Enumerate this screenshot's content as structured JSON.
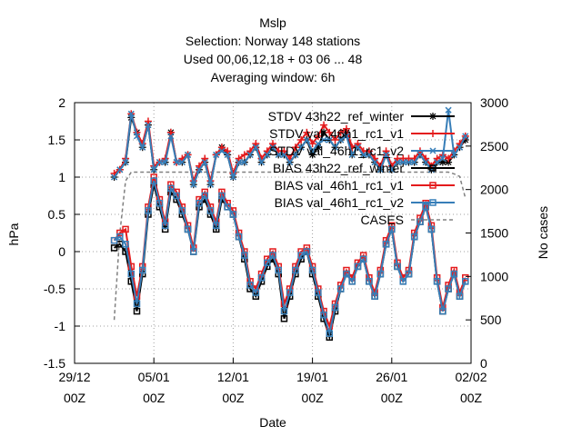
{
  "chart_data": {
    "type": "line",
    "title_lines": [
      "Mslp",
      "Selection: Norway    148 stations",
      "Used  00,06,12,18  + 03 06 ... 48",
      "Averaging window:  6h"
    ],
    "xlabel": "Date",
    "ylabel": "hPa",
    "y2label": "No cases",
    "x_start": "2014-12-29 00Z",
    "x_end": "2015-02-02 00Z",
    "xlim_days": [
      0,
      35
    ],
    "x_ticks": [
      {
        "day": 0,
        "line1": "29/12",
        "line2": "00Z"
      },
      {
        "day": 7,
        "line1": "05/01",
        "line2": "00Z"
      },
      {
        "day": 14,
        "line1": "12/01",
        "line2": "00Z"
      },
      {
        "day": 21,
        "line1": "19/01",
        "line2": "00Z"
      },
      {
        "day": 28,
        "line1": "26/01",
        "line2": "00Z"
      },
      {
        "day": 35,
        "line1": "02/02",
        "line2": "00Z"
      }
    ],
    "ylim": [
      -1.5,
      2
    ],
    "y_ticks": [
      "-1.5",
      "-1",
      "-0.5",
      "0",
      "0.5",
      "1",
      "1.5",
      "2"
    ],
    "y2lim": [
      0,
      3000
    ],
    "y2_ticks": [
      "0",
      "500",
      "1000",
      "1500",
      "2000",
      "2500",
      "3000"
    ],
    "grid": true,
    "legend_position": "top-right",
    "series": [
      {
        "name": "STDV 43h22_ref_winter",
        "color": "#000000",
        "marker": "asterisk",
        "axis": "y",
        "x_days": [
          3.5,
          4,
          4.5,
          5,
          5.5,
          6,
          6.5,
          7,
          7.5,
          8,
          8.5,
          9,
          9.5,
          10,
          10.5,
          11,
          11.5,
          12,
          12.5,
          13,
          13.5,
          14,
          14.5,
          15,
          15.5,
          16,
          16.5,
          17,
          17.5,
          18,
          18.5,
          19,
          19.5,
          20,
          20.5,
          21,
          21.5,
          22,
          22.5,
          23,
          23.5,
          24,
          24.5,
          25,
          25.5,
          26,
          26.5,
          27,
          27.5,
          28,
          28.5,
          29,
          29.5,
          30,
          30.5,
          31,
          31.5,
          32,
          32.5,
          33,
          33.5,
          34,
          34.5
        ],
        "values": [
          1.0,
          1.1,
          1.2,
          1.8,
          1.6,
          1.4,
          1.7,
          1.1,
          1.2,
          1.2,
          1.6,
          1.2,
          1.2,
          1.3,
          0.9,
          1.1,
          1.2,
          0.9,
          1.3,
          1.4,
          1.3,
          1.0,
          1.2,
          1.2,
          1.3,
          1.4,
          1.2,
          1.3,
          1.4,
          1.3,
          1.3,
          1.2,
          1.3,
          1.4,
          1.5,
          1.3,
          1.4,
          1.6,
          1.5,
          1.4,
          1.5,
          1.6,
          1.3,
          1.4,
          1.3,
          1.3,
          1.2,
          1.1,
          1.3,
          1.1,
          1.2,
          1.2,
          1.2,
          1.2,
          1.3,
          1.2,
          1.1,
          1.2,
          1.2,
          1.2,
          1.3,
          1.4,
          1.5
        ]
      },
      {
        "name": "STDV val_46h1_rc1_v1",
        "color": "#e41a1c",
        "marker": "plus",
        "axis": "y",
        "x_days": [
          3.5,
          4,
          4.5,
          5,
          5.5,
          6,
          6.5,
          7,
          7.5,
          8,
          8.5,
          9,
          9.5,
          10,
          10.5,
          11,
          11.5,
          12,
          12.5,
          13,
          13.5,
          14,
          14.5,
          15,
          15.5,
          16,
          16.5,
          17,
          17.5,
          18,
          18.5,
          19,
          19.5,
          20,
          20.5,
          21,
          21.5,
          22,
          22.5,
          23,
          23.5,
          24,
          24.5,
          25,
          25.5,
          26,
          26.5,
          27,
          27.5,
          28,
          28.5,
          29,
          29.5,
          30,
          30.5,
          31,
          31.5,
          32,
          32.5,
          33,
          33.5,
          34,
          34.5
        ],
        "values": [
          1.05,
          1.1,
          1.25,
          1.85,
          1.6,
          1.45,
          1.75,
          1.15,
          1.2,
          1.25,
          1.6,
          1.2,
          1.25,
          1.3,
          0.95,
          1.15,
          1.25,
          0.95,
          1.3,
          1.4,
          1.35,
          1.05,
          1.25,
          1.3,
          1.35,
          1.45,
          1.25,
          1.35,
          1.45,
          1.35,
          1.35,
          1.25,
          1.4,
          1.5,
          1.6,
          1.45,
          1.55,
          1.7,
          1.6,
          1.5,
          1.6,
          1.65,
          1.4,
          1.45,
          1.35,
          1.35,
          1.25,
          1.15,
          1.35,
          1.15,
          1.25,
          1.25,
          1.25,
          1.25,
          1.35,
          1.25,
          1.15,
          1.25,
          1.3,
          1.25,
          1.35,
          1.45,
          1.55
        ]
      },
      {
        "name": "STDV val_46h1_rc1_v2",
        "color": "#377eb8",
        "marker": "x",
        "axis": "y",
        "x_days": [
          3.5,
          4,
          4.5,
          5,
          5.5,
          6,
          6.5,
          7,
          7.5,
          8,
          8.5,
          9,
          9.5,
          10,
          10.5,
          11,
          11.5,
          12,
          12.5,
          13,
          13.5,
          14,
          14.5,
          15,
          15.5,
          16,
          16.5,
          17,
          17.5,
          18,
          18.5,
          19,
          19.5,
          20,
          20.5,
          21,
          21.5,
          22,
          22.5,
          23,
          23.5,
          24,
          24.5,
          25,
          25.5,
          26,
          26.5,
          27,
          27.5,
          28,
          28.5,
          29,
          29.5,
          30,
          30.5,
          31,
          31.5,
          32,
          32.5,
          33,
          33.5,
          34,
          34.5
        ],
        "values": [
          1.0,
          1.1,
          1.2,
          1.85,
          1.55,
          1.4,
          1.7,
          1.1,
          1.2,
          1.2,
          1.55,
          1.2,
          1.2,
          1.3,
          0.9,
          1.1,
          1.2,
          0.9,
          1.3,
          1.35,
          1.3,
          1.0,
          1.2,
          1.2,
          1.3,
          1.4,
          1.2,
          1.3,
          1.4,
          1.3,
          1.3,
          1.2,
          1.3,
          1.4,
          1.5,
          1.35,
          1.45,
          1.5,
          1.5,
          1.4,
          1.5,
          1.55,
          1.3,
          1.4,
          1.3,
          1.3,
          1.2,
          1.1,
          1.3,
          1.1,
          1.2,
          1.2,
          1.2,
          1.2,
          1.3,
          1.2,
          1.1,
          1.2,
          1.25,
          1.9,
          1.3,
          1.4,
          1.55
        ]
      },
      {
        "name": "BIAS 43h22_ref_winter",
        "color": "#000000",
        "marker": "square",
        "axis": "y",
        "x_days": [
          3.5,
          4,
          4.5,
          5,
          5.5,
          6,
          6.5,
          7,
          7.5,
          8,
          8.5,
          9,
          9.5,
          10,
          10.5,
          11,
          11.5,
          12,
          12.5,
          13,
          13.5,
          14,
          14.5,
          15,
          15.5,
          16,
          16.5,
          17,
          17.5,
          18,
          18.5,
          19,
          19.5,
          20,
          20.5,
          21,
          21.5,
          22,
          22.5,
          23,
          23.5,
          24,
          24.5,
          25,
          25.5,
          26,
          26.5,
          27,
          27.5,
          28,
          28.5,
          29,
          29.5,
          30,
          30.5,
          31,
          31.5,
          32,
          32.5,
          33,
          33.5,
          34,
          34.5
        ],
        "values": [
          0.05,
          0.1,
          0.0,
          -0.4,
          -0.8,
          -0.3,
          0.5,
          0.9,
          0.6,
          0.3,
          0.8,
          0.7,
          0.5,
          0.3,
          0.0,
          0.6,
          0.7,
          0.5,
          0.3,
          0.7,
          0.6,
          0.5,
          0.2,
          -0.1,
          -0.5,
          -0.6,
          -0.4,
          -0.2,
          -0.1,
          -0.3,
          -0.9,
          -0.6,
          -0.3,
          -0.1,
          0.0,
          -0.3,
          -0.6,
          -0.9,
          -1.15,
          -0.8,
          -0.5,
          -0.3,
          -0.4,
          -0.2,
          -0.1,
          -0.4,
          -0.6,
          -0.3,
          0.1,
          0.3,
          -0.2,
          -0.4,
          -0.3,
          0.2,
          0.4,
          0.6,
          0.3,
          -0.4,
          -0.8,
          -0.5,
          -0.3,
          -0.6,
          -0.4
        ]
      },
      {
        "name": "BIAS val_46h1_rc1_v1",
        "color": "#e41a1c",
        "marker": "square",
        "axis": "y",
        "x_days": [
          3.5,
          4,
          4.5,
          5,
          5.5,
          6,
          6.5,
          7,
          7.5,
          8,
          8.5,
          9,
          9.5,
          10,
          10.5,
          11,
          11.5,
          12,
          12.5,
          13,
          13.5,
          14,
          14.5,
          15,
          15.5,
          16,
          16.5,
          17,
          17.5,
          18,
          18.5,
          19,
          19.5,
          20,
          20.5,
          21,
          21.5,
          22,
          22.5,
          23,
          23.5,
          24,
          24.5,
          25,
          25.5,
          26,
          26.5,
          27,
          27.5,
          28,
          28.5,
          29,
          29.5,
          30,
          30.5,
          31,
          31.5,
          32,
          32.5,
          33,
          33.5,
          34,
          34.5
        ],
        "values": [
          0.15,
          0.25,
          0.3,
          -0.2,
          -0.6,
          -0.2,
          0.6,
          1.0,
          0.7,
          0.4,
          0.9,
          0.8,
          0.6,
          0.35,
          0.05,
          0.7,
          0.8,
          0.6,
          0.4,
          0.8,
          0.65,
          0.55,
          0.25,
          0.0,
          -0.4,
          -0.5,
          -0.3,
          -0.1,
          0.0,
          -0.2,
          -0.7,
          -0.5,
          -0.2,
          0.0,
          0.05,
          -0.2,
          -0.5,
          -0.8,
          -1.0,
          -0.7,
          -0.45,
          -0.25,
          -0.35,
          -0.15,
          -0.05,
          -0.35,
          -0.55,
          -0.25,
          0.15,
          0.35,
          -0.15,
          -0.35,
          -0.25,
          0.25,
          0.45,
          0.65,
          0.35,
          -0.35,
          -0.75,
          -0.45,
          -0.25,
          -0.55,
          -0.35
        ]
      },
      {
        "name": "BIAS val_46h1_rc1_v2",
        "color": "#377eb8",
        "marker": "square",
        "axis": "y",
        "x_days": [
          3.5,
          4,
          4.5,
          5,
          5.5,
          6,
          6.5,
          7,
          7.5,
          8,
          8.5,
          9,
          9.5,
          10,
          10.5,
          11,
          11.5,
          12,
          12.5,
          13,
          13.5,
          14,
          14.5,
          15,
          15.5,
          16,
          16.5,
          17,
          17.5,
          18,
          18.5,
          19,
          19.5,
          20,
          20.5,
          21,
          21.5,
          22,
          22.5,
          23,
          23.5,
          24,
          24.5,
          25,
          25.5,
          26,
          26.5,
          27,
          27.5,
          28,
          28.5,
          29,
          29.5,
          30,
          30.5,
          31,
          31.5,
          32,
          32.5,
          33,
          33.5,
          34,
          34.5
        ],
        "values": [
          0.15,
          0.2,
          0.1,
          -0.3,
          -0.7,
          -0.25,
          0.55,
          0.95,
          0.65,
          0.35,
          0.85,
          0.75,
          0.55,
          0.3,
          0.0,
          0.65,
          0.75,
          0.55,
          0.35,
          0.75,
          0.6,
          0.5,
          0.2,
          -0.05,
          -0.45,
          -0.55,
          -0.35,
          -0.15,
          -0.05,
          -0.25,
          -0.8,
          -0.55,
          -0.25,
          -0.05,
          0.0,
          -0.25,
          -0.55,
          -0.85,
          -1.1,
          -0.75,
          -0.5,
          -0.3,
          -0.4,
          -0.2,
          -0.1,
          -0.4,
          -0.6,
          -0.3,
          0.1,
          0.3,
          -0.2,
          -0.4,
          -0.3,
          0.2,
          0.4,
          0.6,
          0.3,
          -0.4,
          -0.8,
          -0.5,
          -0.3,
          -0.6,
          -0.4
        ]
      },
      {
        "name": "CASES",
        "color": "#808080",
        "marker": "none",
        "dash": true,
        "axis": "y2",
        "x_days": [
          3.5,
          4,
          4.5,
          5,
          6,
          7,
          8,
          9,
          10,
          12,
          14,
          16,
          18,
          20,
          22,
          24,
          26,
          28,
          30,
          32,
          33,
          33.5,
          34,
          34.5
        ],
        "values": [
          500,
          1500,
          2100,
          2200,
          2200,
          2200,
          2200,
          2200,
          2200,
          2200,
          2200,
          2200,
          2200,
          2200,
          2200,
          2200,
          2200,
          2200,
          2200,
          2200,
          2200,
          2180,
          2150,
          1900
        ]
      }
    ]
  }
}
